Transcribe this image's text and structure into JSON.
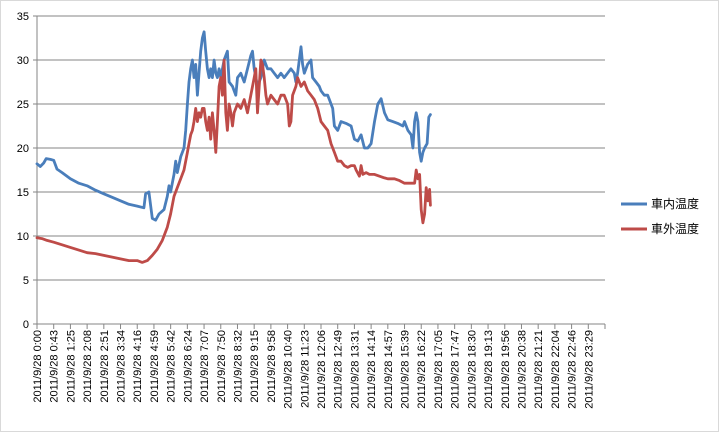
{
  "chart_data": {
    "type": "line",
    "title": "",
    "xlabel": "",
    "ylabel": "",
    "ylim": [
      0,
      35
    ],
    "yticks": [
      0,
      5,
      10,
      15,
      20,
      25,
      30,
      35
    ],
    "grid": "horizontal",
    "legend_position": "right",
    "x_tick_labels": [
      "2011/9/28 0:00",
      "2011/9/28 0:43",
      "2011/9/28 1:25",
      "2011/9/28 2:08",
      "2011/9/28 2:51",
      "2011/9/28 3:34",
      "2011/9/28 4:16",
      "2011/9/28 4:59",
      "2011/9/28 5:42",
      "2011/9/28 6:24",
      "2011/9/28 7:07",
      "2011/9/28 7:50",
      "2011/9/28 8:32",
      "2011/9/28 9:15",
      "2011/9/28 9:58",
      "2011/9/28 10:40",
      "2011/9/28 11:23",
      "2011/9/28 12:06",
      "2011/9/28 12:49",
      "2011/9/28 13:31",
      "2011/9/28 14:14",
      "2011/9/28 14:57",
      "2011/9/28 15:39",
      "2011/9/28 16:22",
      "2011/9/28 17:05",
      "2011/9/28 17:47",
      "2011/9/28 18:30",
      "2011/9/28 19:13",
      "2011/9/28 19:56",
      "2011/9/28 20:38",
      "2011/9/28 21:21",
      "2011/9/28 22:04",
      "2011/9/28 22:46",
      "2011/9/28 23:29"
    ],
    "series": [
      {
        "name": "車内温度",
        "color": "#4A7EBB",
        "points": [
          [
            0,
            18.2
          ],
          [
            0.2,
            17.9
          ],
          [
            0.4,
            18.3
          ],
          [
            0.55,
            18.8
          ],
          [
            0.8,
            18.7
          ],
          [
            1.0,
            18.6
          ],
          [
            1.2,
            17.6
          ],
          [
            1.5,
            17.2
          ],
          [
            2.0,
            16.5
          ],
          [
            2.5,
            16.0
          ],
          [
            3.0,
            15.7
          ],
          [
            3.5,
            15.2
          ],
          [
            4.0,
            14.8
          ],
          [
            4.5,
            14.4
          ],
          [
            5.0,
            14.0
          ],
          [
            5.5,
            13.6
          ],
          [
            6.0,
            13.4
          ],
          [
            6.4,
            13.2
          ],
          [
            6.5,
            14.8
          ],
          [
            6.7,
            15.0
          ],
          [
            6.9,
            12.0
          ],
          [
            7.1,
            11.8
          ],
          [
            7.3,
            12.5
          ],
          [
            7.6,
            13.0
          ],
          [
            7.8,
            14.5
          ],
          [
            7.9,
            15.7
          ],
          [
            8.0,
            15.0
          ],
          [
            8.2,
            17.0
          ],
          [
            8.3,
            18.5
          ],
          [
            8.4,
            17.2
          ],
          [
            8.6,
            19.0
          ],
          [
            8.8,
            20.0
          ],
          [
            8.9,
            22.0
          ],
          [
            9.0,
            25.0
          ],
          [
            9.1,
            27.5
          ],
          [
            9.2,
            29.0
          ],
          [
            9.3,
            30.0
          ],
          [
            9.4,
            28.0
          ],
          [
            9.5,
            29.5
          ],
          [
            9.6,
            26.0
          ],
          [
            9.7,
            28.5
          ],
          [
            9.8,
            31.0
          ],
          [
            9.9,
            32.5
          ],
          [
            10.0,
            33.2
          ],
          [
            10.1,
            31.0
          ],
          [
            10.2,
            29.0
          ],
          [
            10.3,
            28.0
          ],
          [
            10.4,
            29.0
          ],
          [
            10.5,
            28.0
          ],
          [
            10.6,
            30.0
          ],
          [
            10.7,
            28.5
          ],
          [
            10.8,
            28.0
          ],
          [
            10.9,
            29.0
          ],
          [
            11.0,
            28.0
          ],
          [
            11.2,
            30.0
          ],
          [
            11.4,
            31.0
          ],
          [
            11.5,
            27.5
          ],
          [
            11.7,
            27.0
          ],
          [
            11.9,
            26.0
          ],
          [
            12.0,
            28.0
          ],
          [
            12.2,
            28.5
          ],
          [
            12.4,
            27.5
          ],
          [
            12.6,
            29.0
          ],
          [
            12.8,
            30.5
          ],
          [
            12.9,
            31.0
          ],
          [
            13.0,
            29.0
          ],
          [
            13.2,
            27.0
          ],
          [
            13.4,
            28.0
          ],
          [
            13.6,
            30.0
          ],
          [
            13.8,
            29.0
          ],
          [
            14.0,
            29.0
          ],
          [
            14.2,
            28.5
          ],
          [
            14.4,
            28.0
          ],
          [
            14.6,
            28.5
          ],
          [
            14.8,
            28.0
          ],
          [
            15.0,
            28.5
          ],
          [
            15.2,
            29.0
          ],
          [
            15.4,
            28.5
          ],
          [
            15.5,
            27.5
          ],
          [
            15.6,
            28.5
          ],
          [
            15.8,
            31.5
          ],
          [
            15.9,
            29.5
          ],
          [
            16.0,
            28.5
          ],
          [
            16.2,
            29.5
          ],
          [
            16.4,
            30.0
          ],
          [
            16.5,
            28.0
          ],
          [
            16.7,
            27.5
          ],
          [
            16.9,
            27.0
          ],
          [
            17.0,
            26.5
          ],
          [
            17.2,
            26.0
          ],
          [
            17.4,
            26.0
          ],
          [
            17.5,
            25.5
          ],
          [
            17.7,
            24.5
          ],
          [
            17.8,
            22.5
          ],
          [
            18.0,
            22.0
          ],
          [
            18.2,
            23.0
          ],
          [
            18.5,
            22.8
          ],
          [
            18.8,
            22.5
          ],
          [
            19.0,
            21.0
          ],
          [
            19.2,
            20.8
          ],
          [
            19.4,
            21.5
          ],
          [
            19.6,
            20.0
          ],
          [
            19.8,
            20.0
          ],
          [
            20.0,
            20.5
          ],
          [
            20.2,
            23.0
          ],
          [
            20.4,
            25.0
          ],
          [
            20.6,
            25.6
          ],
          [
            20.8,
            24.0
          ],
          [
            21.0,
            23.2
          ],
          [
            21.3,
            23.0
          ],
          [
            21.6,
            22.8
          ],
          [
            21.9,
            22.5
          ],
          [
            22.0,
            23.0
          ],
          [
            22.2,
            22.0
          ],
          [
            22.4,
            21.5
          ],
          [
            22.5,
            20.0
          ],
          [
            22.6,
            23.0
          ],
          [
            22.7,
            24.0
          ],
          [
            22.8,
            23.0
          ],
          [
            22.9,
            19.5
          ],
          [
            23.0,
            18.5
          ],
          [
            23.1,
            19.5
          ],
          [
            23.2,
            20.0
          ],
          [
            23.35,
            20.5
          ],
          [
            23.45,
            23.5
          ],
          [
            23.55,
            23.8
          ]
        ]
      },
      {
        "name": "車外温度",
        "color": "#BE4B48",
        "points": [
          [
            0,
            9.8
          ],
          [
            0.3,
            9.7
          ],
          [
            0.6,
            9.5
          ],
          [
            1.0,
            9.3
          ],
          [
            1.5,
            9.0
          ],
          [
            2.0,
            8.7
          ],
          [
            2.5,
            8.4
          ],
          [
            3.0,
            8.1
          ],
          [
            3.5,
            8.0
          ],
          [
            4.0,
            7.8
          ],
          [
            4.5,
            7.6
          ],
          [
            5.0,
            7.4
          ],
          [
            5.5,
            7.2
          ],
          [
            6.0,
            7.2
          ],
          [
            6.3,
            7.0
          ],
          [
            6.6,
            7.2
          ],
          [
            6.9,
            7.8
          ],
          [
            7.2,
            8.5
          ],
          [
            7.5,
            9.5
          ],
          [
            7.8,
            11.0
          ],
          [
            8.0,
            12.5
          ],
          [
            8.2,
            14.5
          ],
          [
            8.4,
            15.5
          ],
          [
            8.6,
            16.5
          ],
          [
            8.8,
            17.5
          ],
          [
            9.0,
            19.5
          ],
          [
            9.1,
            20.5
          ],
          [
            9.2,
            21.5
          ],
          [
            9.3,
            22.0
          ],
          [
            9.4,
            23.0
          ],
          [
            9.5,
            24.5
          ],
          [
            9.6,
            23.0
          ],
          [
            9.7,
            24.0
          ],
          [
            9.8,
            23.5
          ],
          [
            9.9,
            24.5
          ],
          [
            10.0,
            24.5
          ],
          [
            10.1,
            23.0
          ],
          [
            10.2,
            22.0
          ],
          [
            10.3,
            23.5
          ],
          [
            10.4,
            21.0
          ],
          [
            10.5,
            24.0
          ],
          [
            10.6,
            22.0
          ],
          [
            10.7,
            19.5
          ],
          [
            10.8,
            23.0
          ],
          [
            10.9,
            27.0
          ],
          [
            11.0,
            28.0
          ],
          [
            11.1,
            26.0
          ],
          [
            11.2,
            30.0
          ],
          [
            11.3,
            24.0
          ],
          [
            11.4,
            22.0
          ],
          [
            11.5,
            25.0
          ],
          [
            11.6,
            24.0
          ],
          [
            11.7,
            22.5
          ],
          [
            11.8,
            24.0
          ],
          [
            12.0,
            25.0
          ],
          [
            12.2,
            24.5
          ],
          [
            12.4,
            25.5
          ],
          [
            12.6,
            24.0
          ],
          [
            12.8,
            26.0
          ],
          [
            13.0,
            28.0
          ],
          [
            13.1,
            29.0
          ],
          [
            13.2,
            24.0
          ],
          [
            13.3,
            27.0
          ],
          [
            13.4,
            30.0
          ],
          [
            13.5,
            29.5
          ],
          [
            13.6,
            28.0
          ],
          [
            13.7,
            26.0
          ],
          [
            13.8,
            25.0
          ],
          [
            14.0,
            26.0
          ],
          [
            14.2,
            25.5
          ],
          [
            14.4,
            25.0
          ],
          [
            14.6,
            26.0
          ],
          [
            14.8,
            26.0
          ],
          [
            15.0,
            25.0
          ],
          [
            15.1,
            22.5
          ],
          [
            15.2,
            23.0
          ],
          [
            15.3,
            26.0
          ],
          [
            15.5,
            27.0
          ],
          [
            15.6,
            28.0
          ],
          [
            15.8,
            27.0
          ],
          [
            16.0,
            27.5
          ],
          [
            16.2,
            26.5
          ],
          [
            16.4,
            26.0
          ],
          [
            16.6,
            25.5
          ],
          [
            16.8,
            24.5
          ],
          [
            17.0,
            23.0
          ],
          [
            17.2,
            22.5
          ],
          [
            17.4,
            22.0
          ],
          [
            17.6,
            20.5
          ],
          [
            17.8,
            19.5
          ],
          [
            18.0,
            18.5
          ],
          [
            18.2,
            18.5
          ],
          [
            18.4,
            18.0
          ],
          [
            18.6,
            17.8
          ],
          [
            18.8,
            18.0
          ],
          [
            19.0,
            18.0
          ],
          [
            19.1,
            17.5
          ],
          [
            19.3,
            16.8
          ],
          [
            19.4,
            18.0
          ],
          [
            19.5,
            17.0
          ],
          [
            19.7,
            17.2
          ],
          [
            19.9,
            17.0
          ],
          [
            20.2,
            17.0
          ],
          [
            20.5,
            16.8
          ],
          [
            20.8,
            16.6
          ],
          [
            21.0,
            16.5
          ],
          [
            21.4,
            16.5
          ],
          [
            21.7,
            16.3
          ],
          [
            22.0,
            16.0
          ],
          [
            22.3,
            16.0
          ],
          [
            22.6,
            16.0
          ],
          [
            22.7,
            17.5
          ],
          [
            22.8,
            16.5
          ],
          [
            22.9,
            17.0
          ],
          [
            23.0,
            13.0
          ],
          [
            23.1,
            11.5
          ],
          [
            23.2,
            12.5
          ],
          [
            23.3,
            15.5
          ],
          [
            23.4,
            14.0
          ],
          [
            23.5,
            15.3
          ],
          [
            23.55,
            13.5
          ]
        ]
      }
    ]
  }
}
